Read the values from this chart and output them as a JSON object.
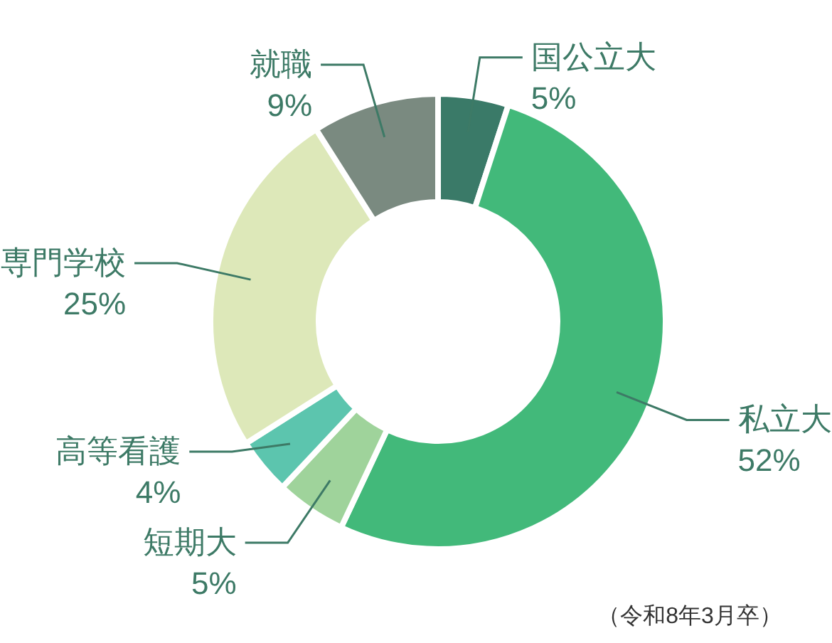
{
  "chart_data": {
    "type": "donut",
    "categories": [
      "国公立大",
      "私立大",
      "短期大",
      "高等看護",
      "専門学校",
      "就職"
    ],
    "values": [
      5,
      52,
      5,
      4,
      25,
      9
    ],
    "value_labels": [
      "5%",
      "52%",
      "5%",
      "4%",
      "25%",
      "9%"
    ],
    "colors": [
      "#3a7a68",
      "#42b97a",
      "#9fd39b",
      "#5cc5ae",
      "#dde8b9",
      "#7a8a80"
    ],
    "annotations": [
      "（令和8年3月卒）"
    ]
  }
}
